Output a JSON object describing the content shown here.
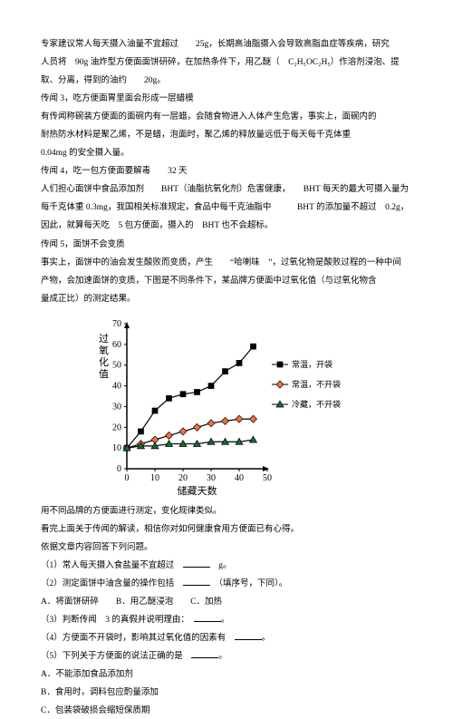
{
  "paragraphs": {
    "p1": "专家建议常人每天摄入油量不宜超过　　25g，长期高油脂摄入会导致高脂血症等疾病，研究",
    "p2": "人员将　90g 油炸型方便面面饼研碎，在加热条件下，用乙醚（　C₂H₅OC₂H₅）作溶剂浸泡、提",
    "p3": "取、分离，得到的油约　　20g。",
    "p4": "传闻 3，吃方便面胃里面会形成一层蜡模",
    "p5": "有传闻称碗装方便面的面碗内有一层蜡，会随食物进入人体产生危害，事实上，面碗内的",
    "p6": "耐热防水材料是聚乙烯，不是蜡，泡面时，聚乙烯的释放量远低于每天每千克体重",
    "p7": "0.04mg 的安全摄入量。",
    "p8": "传闻 4，吃一包方便面要解毒　　32 天",
    "p9": "人们担心面饼中食品添加剂　　BHT（油脂抗氧化剂）危害健康，　　BHT 每天的最大可摄入量为",
    "p10": "每千克体重 0.3mg，我国相关标准规定，食品中每千克油脂中　　　BHT 的添加量不超过　0.2g，",
    "p11": "因此，就算每天吃　5 包方便面，摄入的　BHT 也不会超标。",
    "p12": "传闻 5，面饼不会变质",
    "p13": "事实上，面饼中的油会发生酸败而变质，产生　　“哈喇味　”，过氧化物是酸败过程的一种中间",
    "p14": "产物，会加速面饼的变质，下图是不同条件下，某品牌方便面中过氧化值（与过氧化物含",
    "p15": "量成正比）的测定结果。"
  },
  "chart": {
    "x_label": "储藏天数",
    "y_label": "过氧化值",
    "xlim": [
      0,
      50
    ],
    "xtick_step": 10,
    "ylim": [
      0,
      70
    ],
    "ytick_step": 10,
    "background_color": "#ffffff",
    "axis_color": "#000000",
    "series": [
      {
        "name": "常温，开袋",
        "marker": "square",
        "fill": "#000",
        "data": [
          [
            0,
            10
          ],
          [
            5,
            18
          ],
          [
            10,
            28
          ],
          [
            15,
            34
          ],
          [
            20,
            36
          ],
          [
            25,
            37
          ],
          [
            30,
            40
          ],
          [
            35,
            47
          ],
          [
            40,
            51
          ],
          [
            45,
            59
          ]
        ]
      },
      {
        "name": "常温，不开袋",
        "marker": "diamond",
        "fill": "#FA6E3A",
        "data": [
          [
            0,
            10
          ],
          [
            5,
            12
          ],
          [
            10,
            14
          ],
          [
            15,
            16
          ],
          [
            20,
            18
          ],
          [
            25,
            20
          ],
          [
            30,
            22
          ],
          [
            35,
            23
          ],
          [
            40,
            24
          ],
          [
            45,
            24
          ]
        ]
      },
      {
        "name": "冷藏，不开袋",
        "marker": "triangle",
        "fill": "#156D34",
        "data": [
          [
            0,
            10
          ],
          [
            5,
            11
          ],
          [
            10,
            11
          ],
          [
            15,
            12
          ],
          [
            20,
            12
          ],
          [
            25,
            12
          ],
          [
            30,
            13
          ],
          [
            35,
            13
          ],
          [
            40,
            13
          ],
          [
            45,
            14
          ]
        ]
      }
    ],
    "legend": [
      "常温，开袋",
      "常温，不开袋",
      "冷藏，不开袋"
    ]
  },
  "after": {
    "a1": "用不同品牌的方便面进行测定，变化规律类似。",
    "a2": "看完上面关于传闻的解读，相信你对如何健康食用方便面已有心得。",
    "a3": "依据文章内容回答下列问题。",
    "q1": "（1）常人每天摄入食盐量不宜超过　",
    "q1_tail": "　g。",
    "q2": "（2）测定面饼中油含量的操作包括　",
    "q2_tail": "　（填序号，下同）。",
    "q2_opts": "A．将面饼研碎　　B．用乙醚浸泡　　C．加热",
    "q3": "（3）判断传闻　3 的真假并说明理由：　",
    "q3_tail": "。",
    "q4": "（4）方便面不开袋时，影响其过氧化值的因素有　",
    "q4_tail": "。",
    "q5": "（5）下列关于方便面的说法正确的是　",
    "q5_tail": "。",
    "optA": "A．不能添加食品添加剂",
    "optB": "B．食用时，调料包应酌量添加",
    "optC": "C．包装袋破损会缩短保质期"
  }
}
